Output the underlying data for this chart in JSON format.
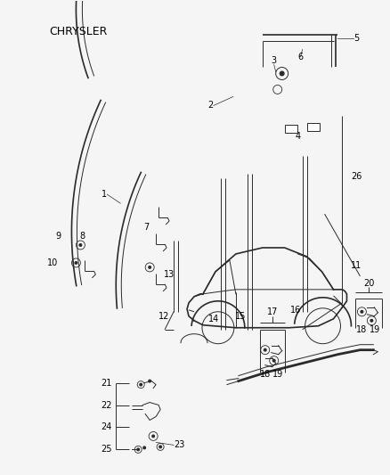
{
  "title": "CHRYSLER",
  "bg_color": "#f5f5f5",
  "line_color": "#2a2a2a",
  "text_color": "#000000",
  "fig_width": 4.38,
  "fig_height": 5.33,
  "dpi": 100
}
